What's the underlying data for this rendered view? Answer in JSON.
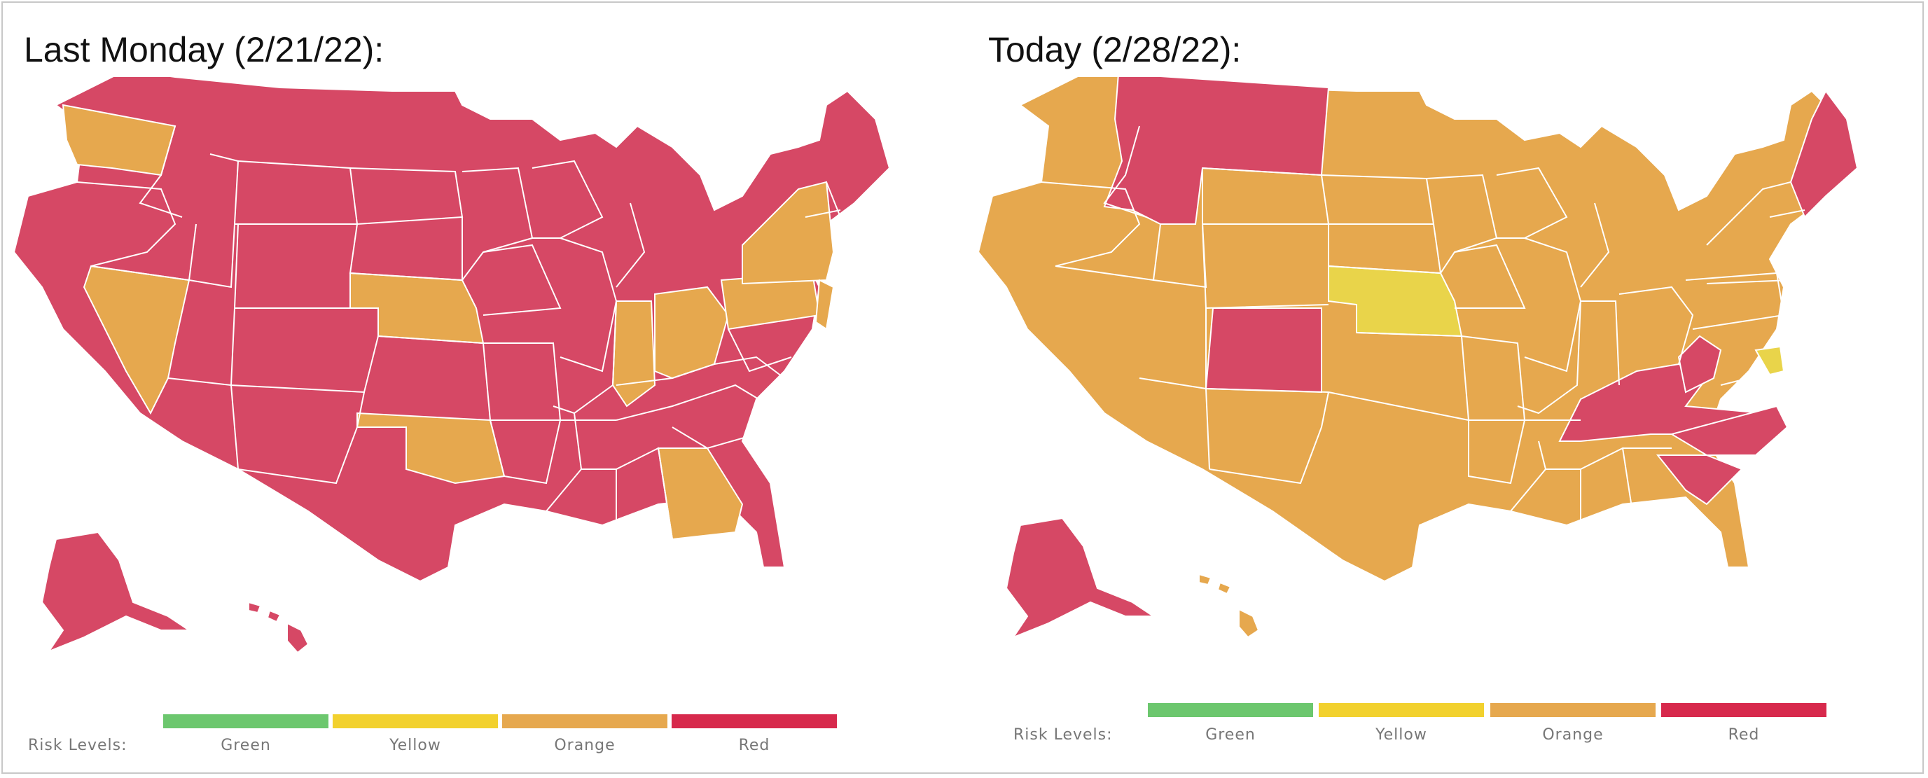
{
  "panels": [
    {
      "title": "Last Monday (2/21/22):"
    },
    {
      "title": "Today (2/28/22):"
    }
  ],
  "legend": {
    "title": "Risk Levels:",
    "items": [
      {
        "label": "Green",
        "color": "#6cc76e"
      },
      {
        "label": "Yellow",
        "color": "#f2d12e"
      },
      {
        "label": "Orange",
        "color": "#e6a84e"
      },
      {
        "label": "Red",
        "color": "#d7294c"
      }
    ]
  },
  "colors": {
    "red": "#d64865",
    "orange": "#e6a84e",
    "yellow": "#e9d44a",
    "border": "#ffffff"
  }
}
